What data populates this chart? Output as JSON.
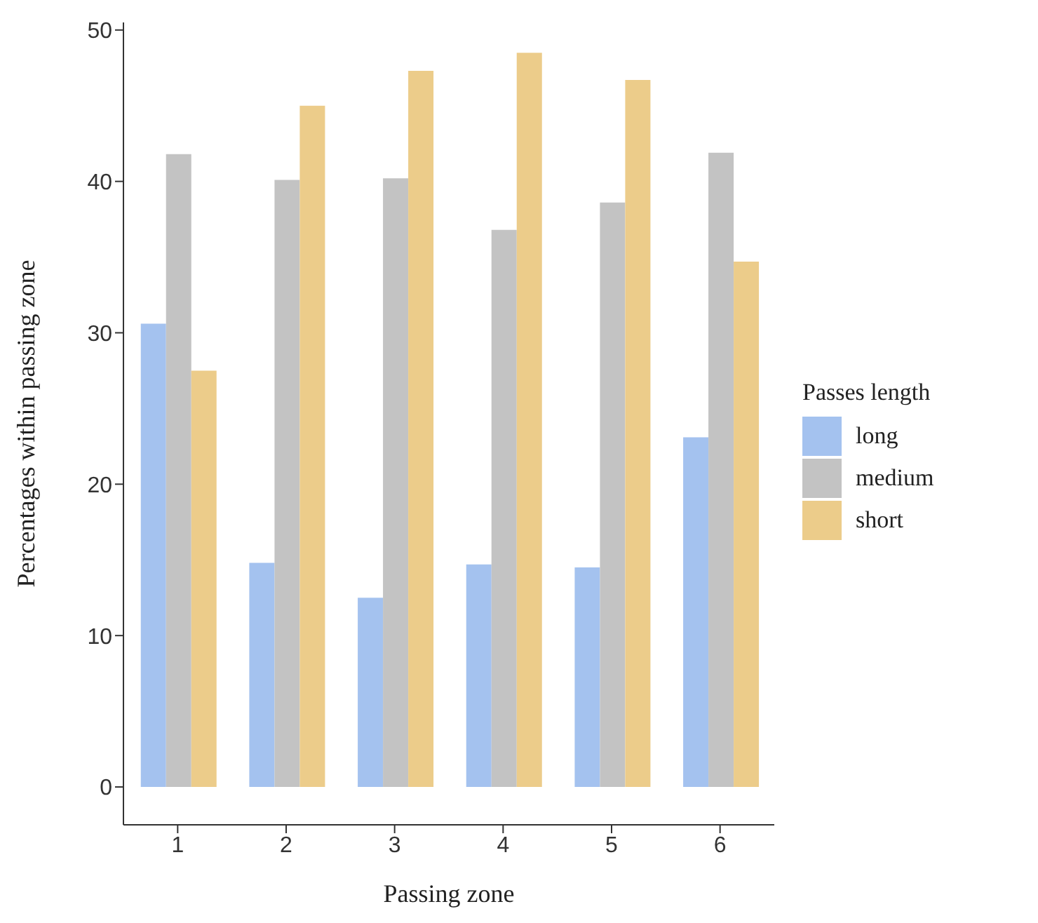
{
  "chart_data": {
    "type": "bar",
    "xlabel": "Passing zone",
    "ylabel": "Percentages within passing zone",
    "legend_title": "Passes length",
    "categories": [
      "1",
      "2",
      "3",
      "4",
      "5",
      "6"
    ],
    "series": [
      {
        "name": "long",
        "color": "#a4c2ef",
        "values": [
          30.6,
          14.8,
          12.5,
          14.7,
          14.5,
          23.1
        ]
      },
      {
        "name": "medium",
        "color": "#c3c3c3",
        "values": [
          41.8,
          40.1,
          40.2,
          36.8,
          38.6,
          41.9
        ]
      },
      {
        "name": "short",
        "color": "#eccc8a",
        "values": [
          27.5,
          45.0,
          47.3,
          48.5,
          46.7,
          34.7
        ]
      }
    ],
    "ylim": [
      -2.5,
      50.5
    ],
    "yticks": [
      0,
      10,
      20,
      30,
      40,
      50
    ],
    "grid": false,
    "legend": "right"
  }
}
